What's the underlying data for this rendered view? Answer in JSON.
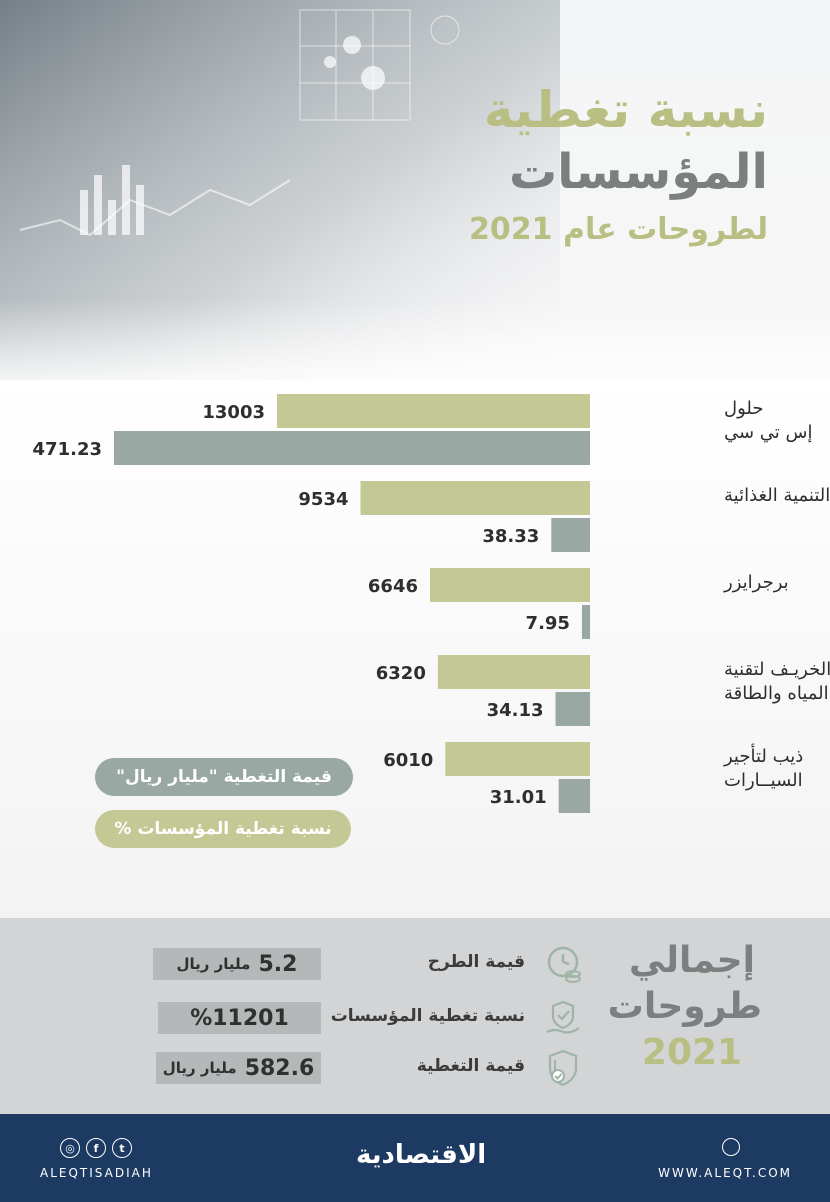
{
  "header": {
    "title_line1": "نسبة تغطية",
    "title_line2": "المؤسسات",
    "title_line3": "لطروحات عام 2021"
  },
  "legend": {
    "value_label": "قيمة التغطية  \"مليار ريال\"",
    "pct_label": "نسبة تغطية المؤسسات %"
  },
  "colors": {
    "coverage_pct_bar": "#c4c894",
    "coverage_value_bar": "#9aa8a3",
    "footer_bg": "#1d3a63"
  },
  "chart_data": {
    "type": "bar",
    "orientation": "horizontal",
    "categories": [
      [
        "حلول",
        "إس تي سي"
      ],
      [
        "التنمية الغذائية"
      ],
      [
        "برجرايزر"
      ],
      [
        "الخريـف لتقنية",
        "المياه والطاقة"
      ],
      [
        "ذيب لتأجير",
        "السيــارات"
      ]
    ],
    "series": [
      {
        "name": "نسبة تغطية المؤسسات %",
        "values": [
          13003,
          9534,
          6646,
          6320,
          6010
        ],
        "labels": [
          "13003",
          "9534",
          "6646",
          "6320",
          "6010"
        ]
      },
      {
        "name": "قيمة التغطية \"مليار ريال\"",
        "values": [
          471.23,
          38.33,
          7.95,
          34.13,
          31.01
        ],
        "labels": [
          "471.23",
          "38.33",
          "7.95",
          "34.13",
          "31.01"
        ]
      }
    ]
  },
  "totals": {
    "title_line1": "إجمالي",
    "title_line2": "طروحات",
    "title_line3": "2021",
    "rows": [
      {
        "label": "قيمة الطرح",
        "value": "5.2",
        "unit": "مليار ريال",
        "icon": "clock-coins-icon"
      },
      {
        "label": "نسبة تغطية المؤسسات",
        "value": "%11201",
        "unit": "",
        "icon": "hand-shield-icon"
      },
      {
        "label": "قيمة التغطية",
        "value": "582.6",
        "unit": "مليار ريال",
        "icon": "shield-check-icon"
      }
    ]
  },
  "footer": {
    "handle": "ALEQTISADIAH",
    "brand": "الاقتصادية",
    "website": "WWW.ALEQT.COM"
  }
}
